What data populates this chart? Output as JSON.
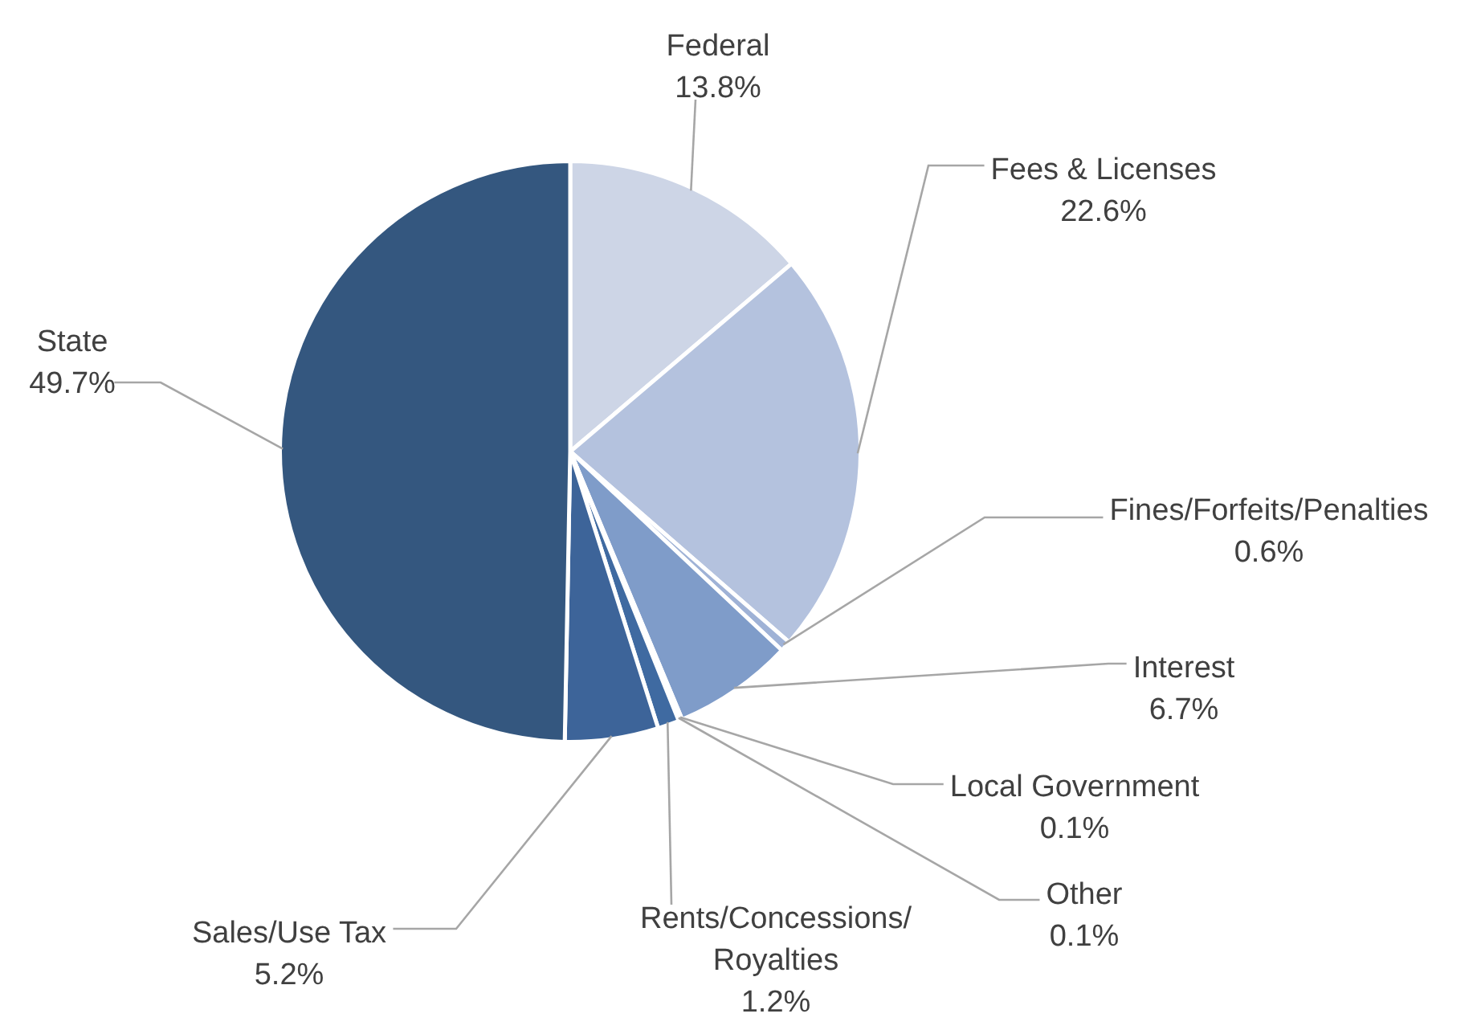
{
  "chart_data": {
    "type": "pie",
    "categories": [
      "Federal",
      "Fees & Licenses",
      "Fines/Forfeits/Penalties",
      "Interest",
      "Local Government",
      "Other",
      "Rents/Concessions/Royalties",
      "Sales/Use Tax",
      "State"
    ],
    "values": [
      13.8,
      22.6,
      0.6,
      6.7,
      0.1,
      0.1,
      1.2,
      5.2,
      49.7
    ],
    "value_labels": [
      "13.8%",
      "22.6%",
      "0.6%",
      "6.7%",
      "0.1%",
      "0.1%",
      "1.2%",
      "5.2%",
      "49.7%"
    ],
    "colors": [
      "#cdd5e6",
      "#b4c2de",
      "#9fb2d6",
      "#7f9cc9",
      "#5f80b5",
      "#4d72aa",
      "#3f6aa1",
      "#3d6499",
      "#34577f"
    ]
  }
}
